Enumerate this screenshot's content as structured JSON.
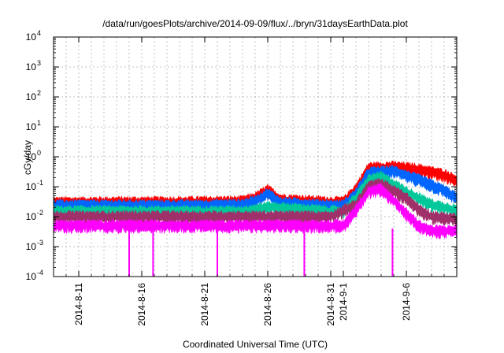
{
  "chart_data": {
    "type": "line",
    "title": "/data/run/goesPlots/archive/2014-09-09/flux/../bryn/31daysEarthData.plot",
    "xlabel": "Coordinated Universal Time (UTC)",
    "ylabel": "cGy/day",
    "yscale": "log",
    "ylim": [
      0.0001,
      10000
    ],
    "xlim": [
      "2014-08-09",
      "2014-09-10"
    ],
    "grid": true,
    "y_ticks": [
      {
        "value": 0.0001,
        "base": "10",
        "exp": "-4"
      },
      {
        "value": 0.001,
        "base": "10",
        "exp": "-3"
      },
      {
        "value": 0.01,
        "base": "10",
        "exp": "-2"
      },
      {
        "value": 0.1,
        "base": "10",
        "exp": "-1"
      },
      {
        "value": 1,
        "base": "10",
        "exp": "0"
      },
      {
        "value": 10,
        "base": "10",
        "exp": "1"
      },
      {
        "value": 100,
        "base": "10",
        "exp": "2"
      },
      {
        "value": 1000,
        "base": "10",
        "exp": "3"
      },
      {
        "value": 10000,
        "base": "10",
        "exp": "4"
      }
    ],
    "x_ticks": [
      {
        "date": "2014-08-11",
        "label": "2014-8-11"
      },
      {
        "date": "2014-08-16",
        "label": "2014-8-16"
      },
      {
        "date": "2014-08-21",
        "label": "2014-8-21"
      },
      {
        "date": "2014-08-26",
        "label": "2014-8-26"
      },
      {
        "date": "2014-08-31",
        "label": "2014-8-31"
      },
      {
        "date": "2014-09-01",
        "label": "2014-9-1"
      },
      {
        "date": "2014-09-06",
        "label": "2014-9-6"
      }
    ],
    "series": [
      {
        "color": "#ff0000",
        "values": [
          [
            "2014-08-09",
            0.035
          ],
          [
            "2014-08-14",
            0.036
          ],
          [
            "2014-08-19",
            0.036
          ],
          [
            "2014-08-24",
            0.038
          ],
          [
            "2014-08-25",
            0.05
          ],
          [
            "2014-08-26",
            0.09
          ],
          [
            "2014-08-27",
            0.045
          ],
          [
            "2014-08-31",
            0.036
          ],
          [
            "2014-09-01",
            0.036
          ],
          [
            "2014-09-02",
            0.1
          ],
          [
            "2014-09-03",
            0.5
          ],
          [
            "2014-09-05",
            0.55
          ],
          [
            "2014-09-07",
            0.45
          ],
          [
            "2014-09-09",
            0.3
          ],
          [
            "2014-09-10",
            0.2
          ]
        ]
      },
      {
        "color": "#0066ff",
        "values": [
          [
            "2014-08-09",
            0.028
          ],
          [
            "2014-08-14",
            0.028
          ],
          [
            "2014-08-19",
            0.028
          ],
          [
            "2014-08-24",
            0.03
          ],
          [
            "2014-08-25",
            0.04
          ],
          [
            "2014-08-26",
            0.07
          ],
          [
            "2014-08-27",
            0.035
          ],
          [
            "2014-08-31",
            0.028
          ],
          [
            "2014-09-01",
            0.028
          ],
          [
            "2014-09-02",
            0.07
          ],
          [
            "2014-09-03",
            0.35
          ],
          [
            "2014-09-05",
            0.4
          ],
          [
            "2014-09-07",
            0.2
          ],
          [
            "2014-09-09",
            0.09
          ],
          [
            "2014-09-10",
            0.05
          ]
        ]
      },
      {
        "color": "#00c89a",
        "values": [
          [
            "2014-08-09",
            0.018
          ],
          [
            "2014-08-14",
            0.018
          ],
          [
            "2014-08-19",
            0.018
          ],
          [
            "2014-08-24",
            0.018
          ],
          [
            "2014-08-26",
            0.025
          ],
          [
            "2014-08-31",
            0.018
          ],
          [
            "2014-09-01",
            0.018
          ],
          [
            "2014-09-02",
            0.05
          ],
          [
            "2014-09-03",
            0.2
          ],
          [
            "2014-09-04",
            0.25
          ],
          [
            "2014-09-06",
            0.08
          ],
          [
            "2014-09-08",
            0.03
          ],
          [
            "2014-09-10",
            0.02
          ]
        ]
      },
      {
        "color": "#a0306a",
        "values": [
          [
            "2014-08-09",
            0.012
          ],
          [
            "2014-08-19",
            0.012
          ],
          [
            "2014-08-31",
            0.012
          ],
          [
            "2014-09-02",
            0.03
          ],
          [
            "2014-09-03",
            0.12
          ],
          [
            "2014-09-04",
            0.15
          ],
          [
            "2014-09-06",
            0.05
          ],
          [
            "2014-09-07",
            0.02
          ],
          [
            "2014-09-08",
            0.012
          ],
          [
            "2014-09-10",
            0.01
          ]
        ]
      },
      {
        "color": "#ff00ff",
        "values": [
          [
            "2014-08-09",
            0.006
          ],
          [
            "2014-08-14",
            0.006
          ],
          [
            "2014-08-19",
            0.006
          ],
          [
            "2014-08-24",
            0.006
          ],
          [
            "2014-08-31",
            0.006
          ],
          [
            "2014-09-01",
            0.006
          ],
          [
            "2014-09-02",
            0.02
          ],
          [
            "2014-09-03",
            0.08
          ],
          [
            "2014-09-04",
            0.1
          ],
          [
            "2014-09-05",
            0.04
          ],
          [
            "2014-09-06",
            0.015
          ],
          [
            "2014-09-07",
            0.006
          ],
          [
            "2014-09-08",
            0.004
          ],
          [
            "2014-09-10",
            0.004
          ]
        ]
      }
    ],
    "dropouts": [
      {
        "date": "2014-08-15.0",
        "value": 0.0001
      },
      {
        "date": "2014-08-16.9",
        "value": 0.0001
      },
      {
        "date": "2014-08-22.0",
        "value": 0.0001
      },
      {
        "date": "2014-08-28.9",
        "value": 0.0001
      },
      {
        "date": "2014-09-04.9",
        "value": 0.0001
      }
    ]
  }
}
